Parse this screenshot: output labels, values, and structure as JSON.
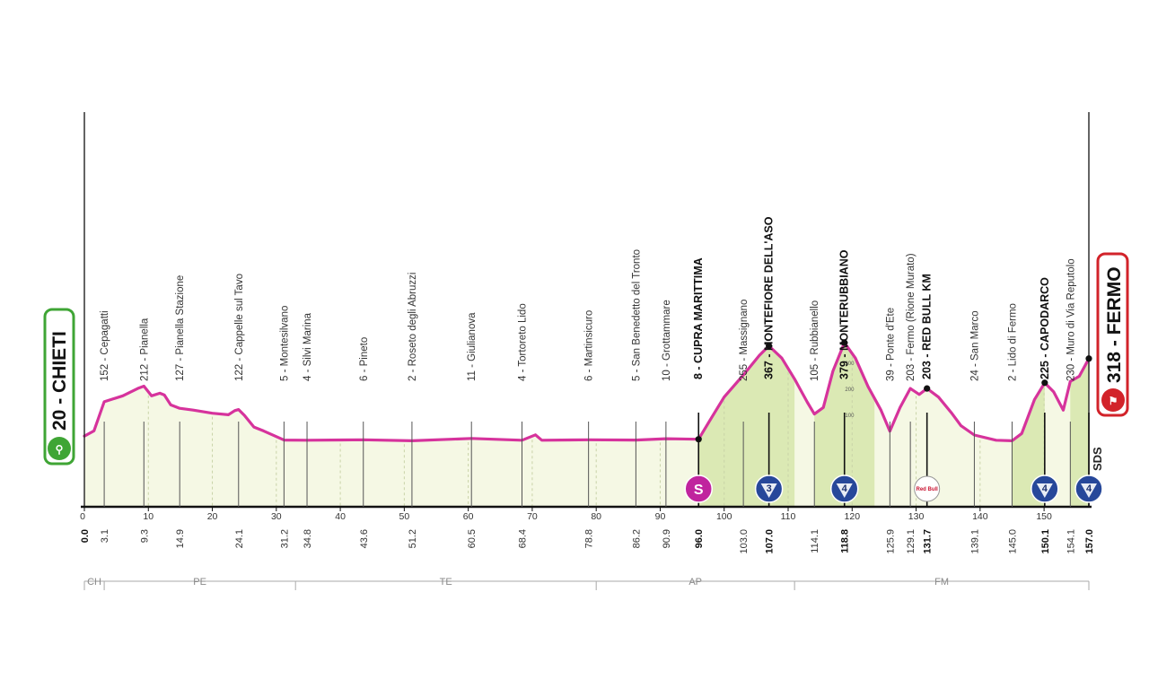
{
  "start": {
    "label": "20 - CHIETI"
  },
  "finish": {
    "label": "318 - FERMO"
  },
  "sds_label": "SDS",
  "redbull_label": "Red Bull",
  "climb_markers": [
    {
      "km": 96.0,
      "type": "sprint",
      "text": "S",
      "color": "#c0249e"
    },
    {
      "km": 107.0,
      "type": "gpm",
      "text": "3",
      "color": "#27489a"
    },
    {
      "km": 118.8,
      "type": "gpm",
      "text": "4",
      "color": "#27489a"
    },
    {
      "km": 131.7,
      "type": "redbull",
      "text": "",
      "color": "#ffffff"
    },
    {
      "km": 150.1,
      "type": "gpm",
      "text": "4",
      "color": "#27489a"
    },
    {
      "km": 157.0,
      "type": "gpm",
      "text": "4",
      "color": "#27489a"
    }
  ],
  "provinces": [
    {
      "code": "CH",
      "from": 0,
      "to": 3.1
    },
    {
      "code": "PE",
      "from": 3.1,
      "to": 33.0
    },
    {
      "code": "TE",
      "from": 33.0,
      "to": 80.0
    },
    {
      "code": "AP",
      "from": 80.0,
      "to": 111.0
    },
    {
      "code": "FM",
      "from": 111.0,
      "to": 157.0
    }
  ],
  "chart_data": {
    "type": "area",
    "x_unit": "km",
    "xlim": [
      0,
      157
    ],
    "x_ticks": [
      0,
      10,
      20,
      30,
      40,
      50,
      60,
      70,
      80,
      90,
      100,
      110,
      120,
      130,
      140,
      150
    ],
    "x_ticks_labels": [
      "0",
      "10",
      "20",
      "30",
      "40",
      "50",
      "60",
      "70",
      "80",
      "90",
      "100",
      "110",
      "120",
      "130",
      "140",
      "150"
    ],
    "altitude_scale_labels": [
      "100",
      "200",
      "300"
    ],
    "profile": [
      [
        0,
        20
      ],
      [
        1.5,
        40
      ],
      [
        3.1,
        152
      ],
      [
        6,
        175
      ],
      [
        8.5,
        205
      ],
      [
        9.3,
        212
      ],
      [
        10.5,
        175
      ],
      [
        11.8,
        185
      ],
      [
        12.5,
        178
      ],
      [
        13.5,
        140
      ],
      [
        14.9,
        127
      ],
      [
        17,
        120
      ],
      [
        20,
        108
      ],
      [
        22.5,
        102
      ],
      [
        23.5,
        118
      ],
      [
        24.1,
        122
      ],
      [
        25,
        100
      ],
      [
        26.5,
        55
      ],
      [
        28,
        40
      ],
      [
        31.2,
        5
      ],
      [
        34.8,
        4
      ],
      [
        43.6,
        6
      ],
      [
        51.2,
        2
      ],
      [
        60.5,
        11
      ],
      [
        68.4,
        4
      ],
      [
        70.5,
        25
      ],
      [
        71.5,
        4
      ],
      [
        78.8,
        6
      ],
      [
        86.2,
        5
      ],
      [
        90.9,
        10
      ],
      [
        96.0,
        8
      ],
      [
        98,
        90
      ],
      [
        100,
        170
      ],
      [
        103.0,
        255
      ],
      [
        105.5,
        330
      ],
      [
        107.0,
        367
      ],
      [
        109,
        320
      ],
      [
        111,
        240
      ],
      [
        113,
        150
      ],
      [
        114.1,
        105
      ],
      [
        115.5,
        130
      ],
      [
        117,
        270
      ],
      [
        118.8,
        379
      ],
      [
        120.5,
        320
      ],
      [
        122.5,
        210
      ],
      [
        124.5,
        120
      ],
      [
        125.9,
        39
      ],
      [
        127.5,
        130
      ],
      [
        129.1,
        203
      ],
      [
        130.5,
        180
      ],
      [
        131.7,
        203
      ],
      [
        133.5,
        170
      ],
      [
        135.5,
        110
      ],
      [
        137,
        60
      ],
      [
        139.1,
        24
      ],
      [
        142.5,
        4
      ],
      [
        145.0,
        2
      ],
      [
        146.5,
        30
      ],
      [
        148.5,
        160
      ],
      [
        150.1,
        225
      ],
      [
        151.5,
        190
      ],
      [
        153,
        120
      ],
      [
        154.1,
        230
      ],
      [
        155.5,
        250
      ],
      [
        157.0,
        318
      ]
    ],
    "waypoints": [
      {
        "km": "3.1",
        "label": "152 - Cepagatti",
        "bold": false
      },
      {
        "km": "9.3",
        "label": "212 - Pianella",
        "bold": false
      },
      {
        "km": "14.9",
        "label": "127 - Pianella Stazione",
        "bold": false
      },
      {
        "km": "24.1",
        "label": "122 - Cappelle sul Tavo",
        "bold": false
      },
      {
        "km": "31.2",
        "label": "5 - Montesilvano",
        "bold": false
      },
      {
        "km": "34.8",
        "label": "4 - Silvi Marina",
        "bold": false
      },
      {
        "km": "43.6",
        "label": "6 - Pineto",
        "bold": false
      },
      {
        "km": "51.2",
        "label": "2 - Roseto degli Abruzzi",
        "bold": false
      },
      {
        "km": "60.5",
        "label": "11 - Giulianova",
        "bold": false
      },
      {
        "km": "68.4",
        "label": "4 - Tortoreto Lido",
        "bold": false
      },
      {
        "km": "78.8",
        "label": "6 - Martinsicuro",
        "bold": false
      },
      {
        "km": "86.2",
        "label": "5 - San Benedetto del Tronto",
        "bold": false
      },
      {
        "km": "90.9",
        "label": "10 - Grottammare",
        "bold": false
      },
      {
        "km": "96.0",
        "label": "8 - CUPRA MARITTIMA",
        "bold": true
      },
      {
        "km": "103.0",
        "label": "255 - Massignano",
        "bold": false
      },
      {
        "km": "107.0",
        "label": "367 - MONTEFIORE DELL'ASO",
        "bold": true
      },
      {
        "km": "114.1",
        "label": "105 - Rubbianello",
        "bold": false
      },
      {
        "km": "118.8",
        "label": "379 - MONTERUBBIANO",
        "bold": true
      },
      {
        "km": "125.9",
        "label": "39 - Ponte d'Ete",
        "bold": false
      },
      {
        "km": "129.1",
        "label": "203 - Fermo (Rione Murato)",
        "bold": false
      },
      {
        "km": "131.7",
        "label": "203 - RED BULL KM",
        "bold": true
      },
      {
        "km": "139.1",
        "label": "24 - San Marco",
        "bold": false
      },
      {
        "km": "145.0",
        "label": "2 - Lido di Fermo",
        "bold": false
      },
      {
        "km": "150.1",
        "label": "225 - CAPODARCO",
        "bold": true
      },
      {
        "km": "154.1",
        "label": "230 - Muro di Via Reputolo",
        "bold": false
      },
      {
        "km": "157.0",
        "label": "318 - FERMO",
        "bold": true
      }
    ],
    "start_km_label": "0.0",
    "climbs_shaded": [
      [
        96.0,
        111.0
      ],
      [
        114.1,
        123.5
      ],
      [
        145.0,
        150.1
      ],
      [
        154.1,
        157.0
      ]
    ]
  }
}
